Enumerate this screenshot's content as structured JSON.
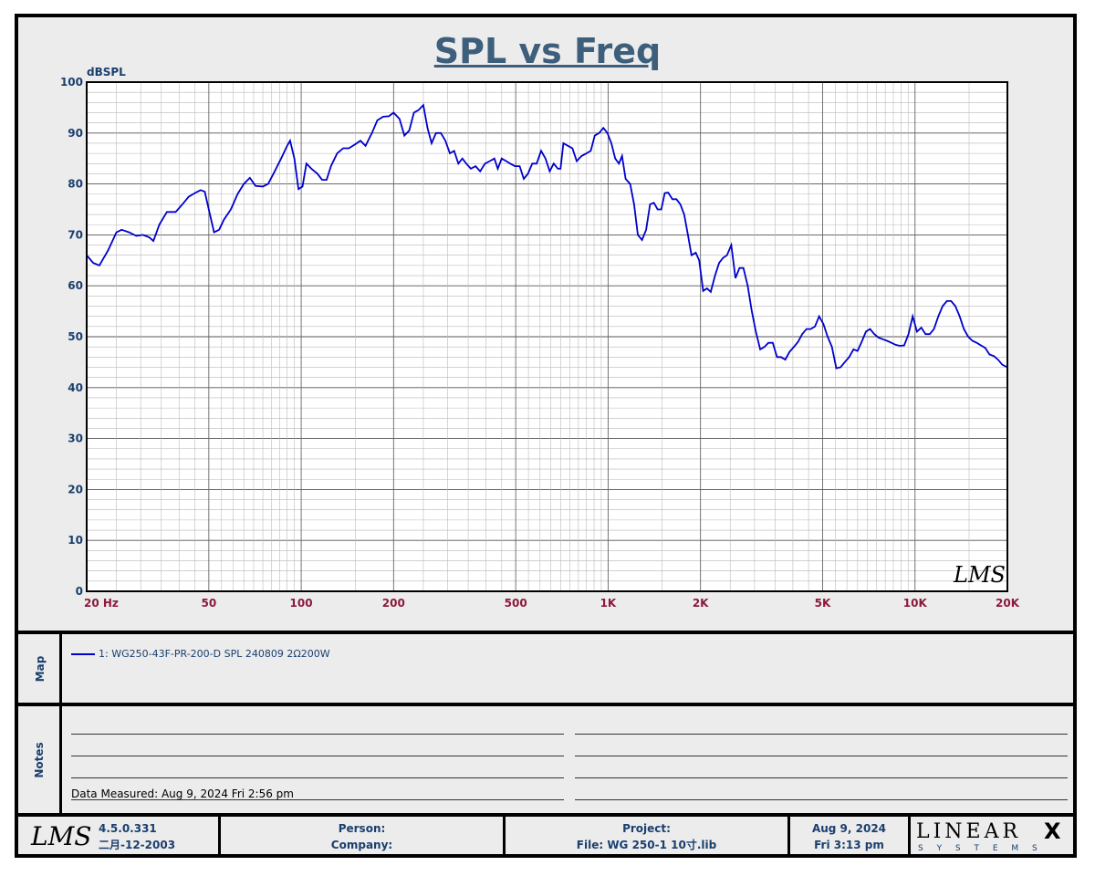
{
  "chart_data": {
    "type": "line",
    "title": "SPL vs Freq",
    "ylabel": "dBSPL",
    "xscale": "log",
    "xlim": [
      20,
      20000
    ],
    "ylim": [
      0,
      100
    ],
    "grid": true,
    "y_ticks": [
      "0",
      "10",
      "20",
      "30",
      "40",
      "50",
      "60",
      "70",
      "80",
      "90",
      "100"
    ],
    "x_ticks": [
      {
        "label": "20  Hz",
        "value": 20
      },
      {
        "label": "50",
        "value": 50
      },
      {
        "label": "100",
        "value": 100
      },
      {
        "label": "200",
        "value": 200
      },
      {
        "label": "500",
        "value": 500
      },
      {
        "label": "1K",
        "value": 1000
      },
      {
        "label": "2K",
        "value": 2000
      },
      {
        "label": "5K",
        "value": 5000
      },
      {
        "label": "10K",
        "value": 10000
      },
      {
        "label": "20K",
        "value": 20000
      }
    ],
    "series": [
      {
        "name": "1: WG250-43F-PR-200-D SPL 240809 2Ω200W",
        "color": "#0000cc",
        "points": [
          [
            20,
            66
          ],
          [
            21,
            64.5
          ],
          [
            22,
            64
          ],
          [
            23.5,
            67
          ],
          [
            25,
            70.5
          ],
          [
            26,
            71
          ],
          [
            27.5,
            70.5
          ],
          [
            29,
            69.8
          ],
          [
            30.5,
            70
          ],
          [
            32,
            69.5
          ],
          [
            33,
            68.8
          ],
          [
            34.5,
            72
          ],
          [
            36.5,
            74.5
          ],
          [
            39,
            74.5
          ],
          [
            41,
            76
          ],
          [
            43,
            77.5
          ],
          [
            45,
            78.2
          ],
          [
            47,
            78.8
          ],
          [
            48.5,
            78.5
          ],
          [
            50,
            75
          ],
          [
            52,
            70.5
          ],
          [
            54,
            71
          ],
          [
            56,
            73
          ],
          [
            59,
            75
          ],
          [
            62,
            78
          ],
          [
            65,
            80
          ],
          [
            68,
            81.2
          ],
          [
            71,
            79.6
          ],
          [
            75,
            79.5
          ],
          [
            78,
            80
          ],
          [
            82,
            82.5
          ],
          [
            86,
            85
          ],
          [
            90,
            87.5
          ],
          [
            92,
            88.5
          ],
          [
            95,
            85
          ],
          [
            98,
            79
          ],
          [
            101,
            79.5
          ],
          [
            104,
            84
          ],
          [
            108,
            83
          ],
          [
            113,
            82
          ],
          [
            117,
            80.8
          ],
          [
            121,
            80.8
          ],
          [
            125,
            83.5
          ],
          [
            131,
            86
          ],
          [
            137,
            87
          ],
          [
            143,
            87
          ],
          [
            150,
            87.8
          ],
          [
            156,
            88.5
          ],
          [
            162,
            87.5
          ],
          [
            170,
            90
          ],
          [
            177,
            92.5
          ],
          [
            185,
            93.2
          ],
          [
            193,
            93.3
          ],
          [
            200,
            94
          ],
          [
            209,
            92.8
          ],
          [
            217,
            89.5
          ],
          [
            225,
            90.5
          ],
          [
            233,
            94
          ],
          [
            241,
            94.5
          ],
          [
            250,
            95.5
          ],
          [
            258,
            91
          ],
          [
            266,
            88
          ],
          [
            275,
            90
          ],
          [
            285,
            90
          ],
          [
            295,
            88.5
          ],
          [
            305,
            86
          ],
          [
            315,
            86.5
          ],
          [
            325,
            84
          ],
          [
            335,
            85
          ],
          [
            345,
            84
          ],
          [
            357,
            83
          ],
          [
            370,
            83.5
          ],
          [
            383,
            82.5
          ],
          [
            397,
            84
          ],
          [
            412,
            84.5
          ],
          [
            426,
            85
          ],
          [
            437,
            83
          ],
          [
            450,
            85
          ],
          [
            465,
            84.5
          ],
          [
            480,
            84
          ],
          [
            497,
            83.5
          ],
          [
            515,
            83.5
          ],
          [
            531,
            81
          ],
          [
            548,
            82
          ],
          [
            566,
            84
          ],
          [
            585,
            84
          ],
          [
            605,
            86.5
          ],
          [
            625,
            85
          ],
          [
            645,
            82.5
          ],
          [
            665,
            84
          ],
          [
            686,
            83
          ],
          [
            700,
            83
          ],
          [
            715,
            88
          ],
          [
            740,
            87.5
          ],
          [
            765,
            87
          ],
          [
            790,
            84.5
          ],
          [
            820,
            85.5
          ],
          [
            850,
            86
          ],
          [
            878,
            86.5
          ],
          [
            905,
            89.5
          ],
          [
            935,
            90
          ],
          [
            965,
            91
          ],
          [
            995,
            90
          ],
          [
            1025,
            88
          ],
          [
            1055,
            85
          ],
          [
            1085,
            84
          ],
          [
            1110,
            85.5
          ],
          [
            1140,
            81
          ],
          [
            1180,
            80
          ],
          [
            1215,
            76
          ],
          [
            1250,
            70
          ],
          [
            1290,
            69
          ],
          [
            1330,
            71
          ],
          [
            1370,
            76
          ],
          [
            1410,
            76.3
          ],
          [
            1450,
            75
          ],
          [
            1490,
            75
          ],
          [
            1530,
            78.2
          ],
          [
            1570,
            78.3
          ],
          [
            1620,
            77
          ],
          [
            1670,
            77
          ],
          [
            1720,
            76
          ],
          [
            1770,
            74
          ],
          [
            1820,
            70
          ],
          [
            1870,
            66
          ],
          [
            1930,
            66.5
          ],
          [
            1980,
            65
          ],
          [
            2040,
            59
          ],
          [
            2100,
            59.5
          ],
          [
            2160,
            58.8
          ],
          [
            2230,
            62
          ],
          [
            2300,
            64.5
          ],
          [
            2370,
            65.5
          ],
          [
            2440,
            66
          ],
          [
            2520,
            68
          ],
          [
            2600,
            61.5
          ],
          [
            2680,
            63.5
          ],
          [
            2760,
            63.5
          ],
          [
            2850,
            60
          ],
          [
            2940,
            55
          ],
          [
            3030,
            51
          ],
          [
            3130,
            47.5
          ],
          [
            3230,
            48
          ],
          [
            3330,
            48.8
          ],
          [
            3440,
            48.8
          ],
          [
            3550,
            46
          ],
          [
            3660,
            46
          ],
          [
            3780,
            45.5
          ],
          [
            3900,
            47
          ],
          [
            4030,
            48
          ],
          [
            4160,
            49
          ],
          [
            4290,
            50.5
          ],
          [
            4430,
            51.5
          ],
          [
            4570,
            51.5
          ],
          [
            4720,
            52
          ],
          [
            4870,
            54
          ],
          [
            5030,
            52.5
          ],
          [
            5190,
            50
          ],
          [
            5360,
            48
          ],
          [
            5540,
            43.8
          ],
          [
            5720,
            44
          ],
          [
            5900,
            45
          ],
          [
            6100,
            46
          ],
          [
            6300,
            47.5
          ],
          [
            6500,
            47.2
          ],
          [
            6700,
            49
          ],
          [
            6920,
            51
          ],
          [
            7140,
            51.5
          ],
          [
            7370,
            50.5
          ],
          [
            7610,
            49.8
          ],
          [
            7860,
            49.5
          ],
          [
            8110,
            49.2
          ],
          [
            8380,
            48.8
          ],
          [
            8650,
            48.4
          ],
          [
            8930,
            48.2
          ],
          [
            9220,
            48.3
          ],
          [
            9520,
            50.5
          ],
          [
            9830,
            54
          ],
          [
            10150,
            51
          ],
          [
            10480,
            51.8
          ],
          [
            10820,
            50.5
          ],
          [
            11170,
            50.5
          ],
          [
            11530,
            51.5
          ],
          [
            11910,
            54
          ],
          [
            12300,
            56
          ],
          [
            12700,
            57
          ],
          [
            13110,
            57
          ],
          [
            13540,
            56
          ],
          [
            13980,
            54
          ],
          [
            14430,
            51.5
          ],
          [
            14900,
            50
          ],
          [
            15390,
            49.2
          ],
          [
            15890,
            48.8
          ],
          [
            16400,
            48.3
          ],
          [
            16940,
            47.8
          ],
          [
            17490,
            46.5
          ],
          [
            18060,
            46.2
          ],
          [
            18640,
            45.5
          ],
          [
            19250,
            44.5
          ],
          [
            20000,
            44
          ]
        ]
      }
    ]
  },
  "map_label": "Map",
  "notes_label": "Notes",
  "legend_entry": "1: WG250-43F-PR-200-D SPL 240809 2Ω200W",
  "data_measured": "Data Measured: Aug  9, 2024  Fri  2:56 pm",
  "watermark": "LMS",
  "footer": {
    "logo": "LMS",
    "version": "4.5.0.331",
    "version_date": "二月-12-2003",
    "person_label": "Person:",
    "company_label": "Company:",
    "project_label": "Project:",
    "file_label": "File: WG 250-1 10寸.lib",
    "date": "Aug  9, 2024",
    "day_time": "Fri  3:13 pm",
    "brand": "LINEAR",
    "brand_x": "X",
    "brand_sub": "S Y S T E M S"
  }
}
